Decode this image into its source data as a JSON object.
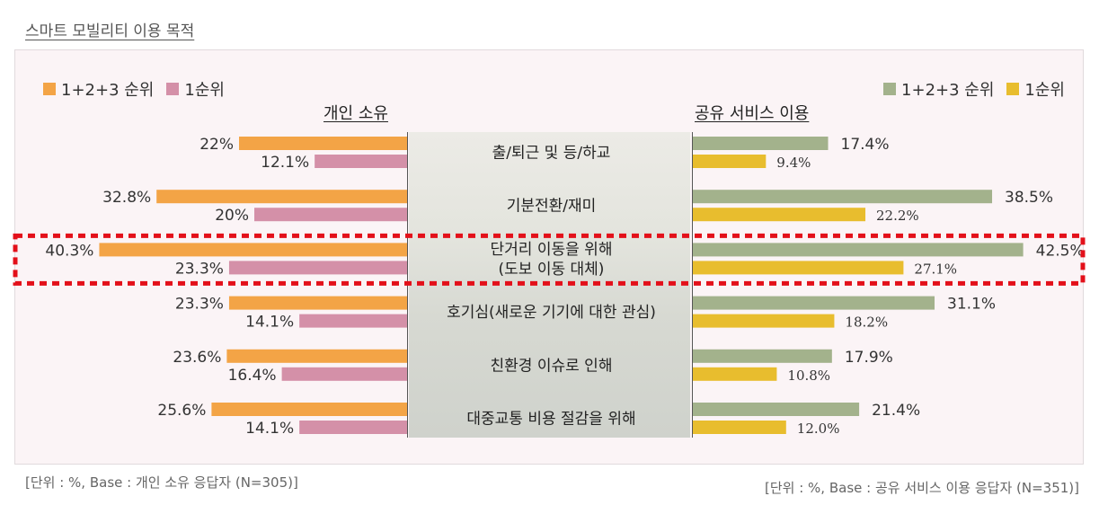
{
  "title": "스마트 모빌리티 이용 목적",
  "left_legend": [
    {
      "label": "1+2+3 순위",
      "color": "#f3a446"
    },
    {
      "label": "1순위",
      "color": "#d490a8"
    }
  ],
  "right_legend": [
    {
      "label": "1+2+3 순위",
      "color": "#a3b28c"
    },
    {
      "label": "1순위",
      "color": "#e8bd2e"
    }
  ],
  "footer_left": "[단위 : %, Base : 개인 소유 응답자 (N=305)]",
  "footer_right": "[단위 : %, Base : 공유 서비스 이용 응답자 (N=351)]",
  "chart_data": {
    "type": "bar",
    "orientation": "horizontal-butterfly",
    "categories": [
      [
        "출/퇴근 및 등/하교"
      ],
      [
        "기분전환/재미"
      ],
      [
        "단거리 이동을 위해",
        "(도보 이동 대체)"
      ],
      [
        "호기심(새로운 기기에 대한 관심)"
      ],
      [
        "친환경 이슈로 인해"
      ],
      [
        "대중교통 비용 절감을 위해"
      ]
    ],
    "highlight_index": 2,
    "left": {
      "title": "개인 소유",
      "series": [
        {
          "name": "1+2+3 순위",
          "values": [
            22,
            32.8,
            40.3,
            23.3,
            23.6,
            25.6
          ],
          "labels": [
            "22%",
            "32.8%",
            "40.3%",
            "23.3%",
            "23.6%",
            "25.6%"
          ]
        },
        {
          "name": "1순위",
          "values": [
            12.1,
            20,
            23.3,
            14.1,
            16.4,
            14.1
          ],
          "labels": [
            "12.1%",
            "20%",
            "23.3%",
            "14.1%",
            "16.4%",
            "14.1%"
          ]
        }
      ]
    },
    "right": {
      "title": "공유 서비스 이용",
      "series": [
        {
          "name": "1+2+3 순위",
          "values": [
            17.4,
            38.5,
            42.5,
            31.1,
            17.9,
            21.4
          ],
          "labels": [
            "17.4%",
            "38.5%",
            "42.5%",
            "31.1%",
            "17.9%",
            "21.4%"
          ]
        },
        {
          "name": "1순위",
          "values": [
            9.4,
            22.2,
            27.1,
            18.2,
            10.8,
            12.0
          ],
          "labels": [
            "9.4%",
            "22.2%",
            "27.1%",
            "18.2%",
            "10.8%",
            "12.0%"
          ]
        }
      ]
    }
  }
}
